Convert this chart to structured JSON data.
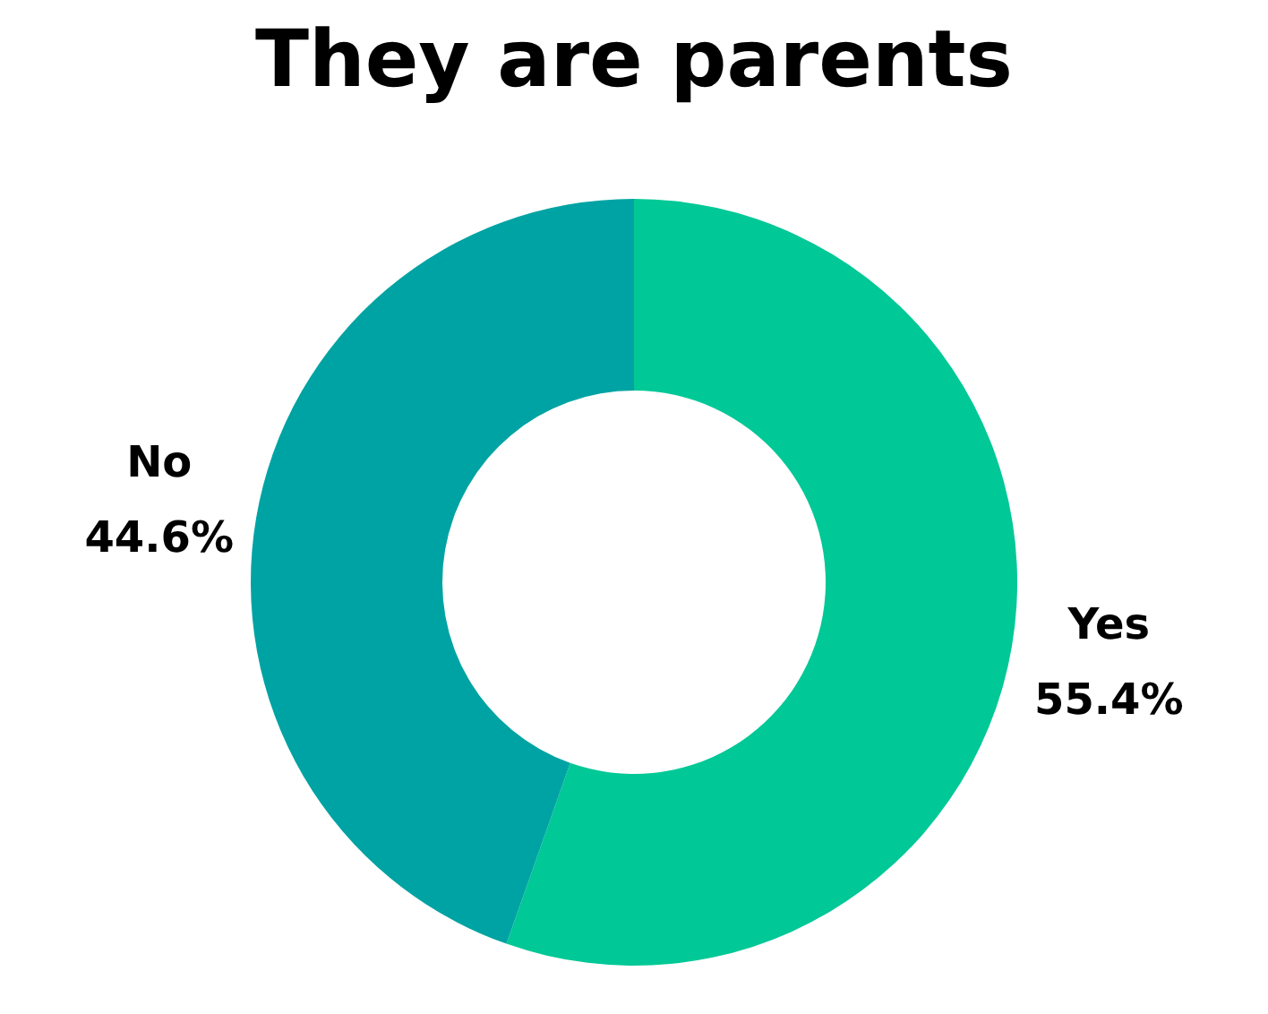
{
  "chart_data": {
    "type": "donut",
    "title": "They are parents",
    "categories": [
      "Yes",
      "No"
    ],
    "values": [
      55.4,
      44.6
    ],
    "value_labels": [
      "55.4%",
      "44.6%"
    ],
    "colors": [
      "#00c896",
      "#00a3a3"
    ],
    "legend": false
  }
}
